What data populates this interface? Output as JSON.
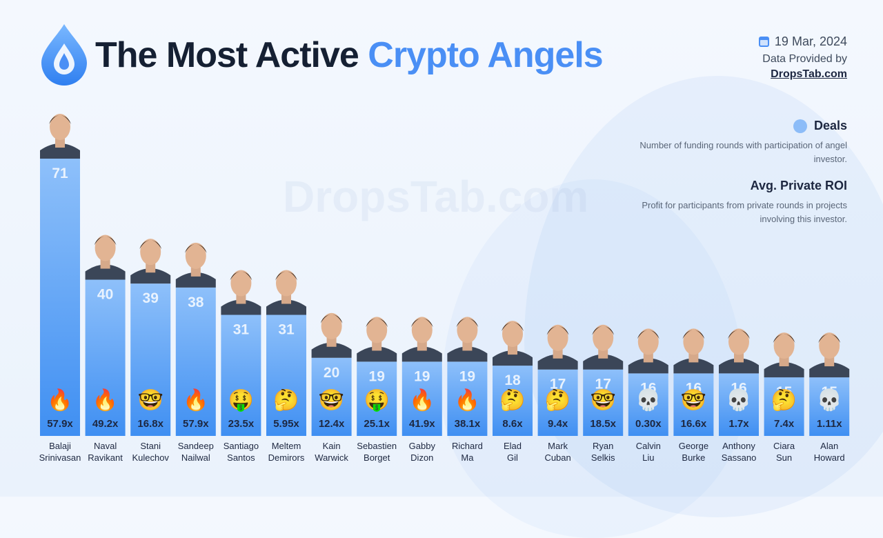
{
  "header": {
    "title_main": "The Most Active",
    "title_accent": "Crypto Angels",
    "date": "19 Mar, 2024",
    "provided_by": "Data Provided by",
    "source": "DropsTab.com"
  },
  "watermark": "DropsTab.com",
  "legend": {
    "deals_title": "Deals",
    "deals_desc": "Number of funding rounds with participation of angel investor.",
    "roi_title": "Avg. Private ROI",
    "roi_desc": "Profit for participants from private rounds in projects involving this investor."
  },
  "colors": {
    "accent": "#4a8ff5",
    "bar_top": "#8ec0fa",
    "bar_bottom": "#3f8ff2",
    "title_dark": "#152033"
  },
  "chart_data": {
    "type": "bar",
    "categories": [
      [
        "Balaji",
        "Srinivasan"
      ],
      [
        "Naval",
        "Ravikant"
      ],
      [
        "Stani",
        "Kulechov"
      ],
      [
        "Sandeep",
        "Nailwal"
      ],
      [
        "Santiago",
        "Santos"
      ],
      [
        "Meltem",
        "Demirors"
      ],
      [
        "Kain",
        "Warwick"
      ],
      [
        "Sebastien",
        "Borget"
      ],
      [
        "Gabby",
        "Dizon"
      ],
      [
        "Richard",
        "Ma"
      ],
      [
        "Elad",
        "Gil"
      ],
      [
        "Mark",
        "Cuban"
      ],
      [
        "Ryan",
        "Selkis"
      ],
      [
        "Calvin",
        "Liu"
      ],
      [
        "George",
        "Burke"
      ],
      [
        "Anthony",
        "Sassano"
      ],
      [
        "Ciara",
        "Sun"
      ],
      [
        "Alan",
        "Howard"
      ]
    ],
    "series": [
      {
        "name": "Deals",
        "values": [
          71,
          40,
          39,
          38,
          31,
          31,
          20,
          19,
          19,
          19,
          18,
          17,
          17,
          16,
          16,
          16,
          15,
          15
        ]
      },
      {
        "name": "Avg. Private ROI",
        "values": [
          "57.9x",
          "49.2x",
          "16.8x",
          "57.9x",
          "23.5x",
          "5.95x",
          "12.4x",
          "25.1x",
          "41.9x",
          "38.1x",
          "8.6x",
          "9.4x",
          "18.5x",
          "0.30x",
          "16.6x",
          "1.7x",
          "7.4x",
          "1.11x"
        ]
      }
    ],
    "roi_icons": [
      "fire-icon",
      "fire-icon",
      "nerd-face-icon",
      "fire-icon",
      "money-mouth-icon",
      "thinking-face-icon",
      "nerd-face-icon",
      "money-mouth-icon",
      "fire-icon",
      "fire-icon",
      "thinking-face-icon",
      "thinking-face-icon",
      "nerd-face-icon",
      "skull-icon",
      "nerd-face-icon",
      "skull-icon",
      "thinking-face-icon",
      "skull-icon"
    ],
    "icon_glyphs": {
      "fire-icon": "🔥",
      "nerd-face-icon": "🤓",
      "money-mouth-icon": "🤑",
      "thinking-face-icon": "🤔",
      "skull-icon": "💀"
    }
  }
}
